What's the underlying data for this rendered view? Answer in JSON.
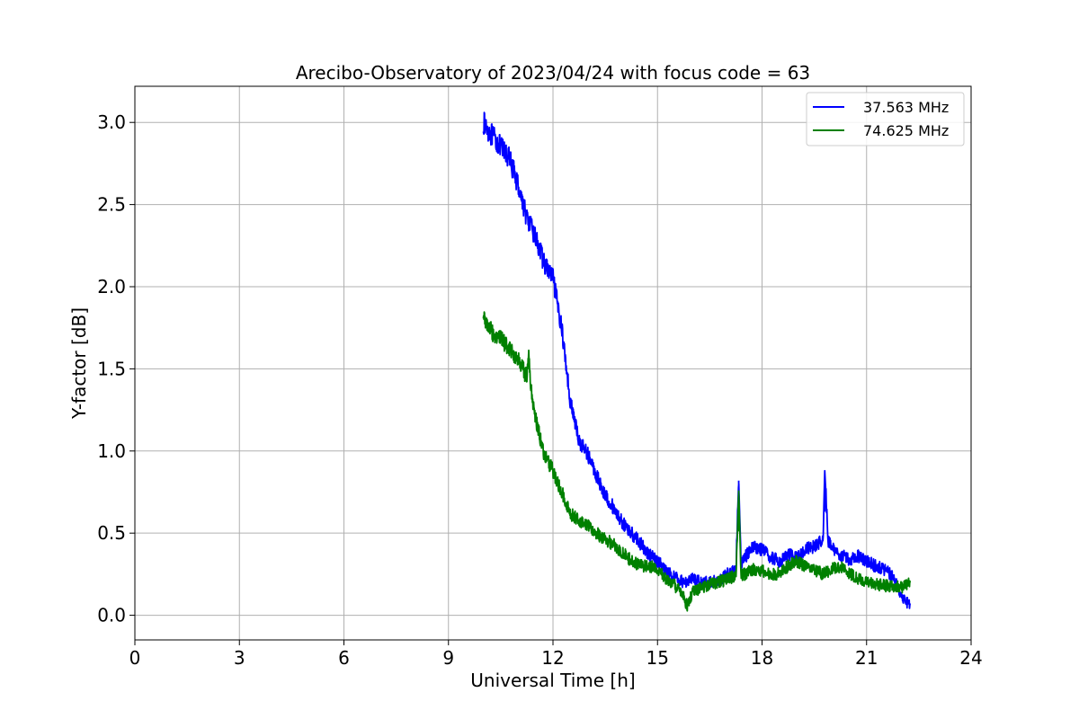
{
  "chart_data": {
    "type": "line",
    "title": "Arecibo-Observatory of 2023/04/24 with focus code = 63",
    "xlabel": "Universal Time [h]",
    "ylabel": "Y-factor [dB]",
    "xlim": [
      0,
      24
    ],
    "ylim": [
      -0.15,
      3.22
    ],
    "xticks": [
      0,
      3,
      6,
      9,
      12,
      15,
      18,
      21,
      24
    ],
    "yticks": [
      0.0,
      0.5,
      1.0,
      1.5,
      2.0,
      2.5,
      3.0
    ],
    "grid": true,
    "legend_position": "top-right",
    "series": [
      {
        "name": "37.563 MHz",
        "color": "#0000ff",
        "x": [
          10.0,
          10.25,
          10.5,
          10.75,
          11.0,
          11.25,
          11.5,
          11.75,
          12.0,
          12.25,
          12.5,
          12.75,
          13.0,
          13.25,
          13.5,
          13.75,
          14.0,
          14.25,
          14.5,
          14.75,
          15.0,
          15.25,
          15.5,
          15.75,
          16.0,
          16.25,
          16.5,
          16.75,
          17.0,
          17.25,
          17.33,
          17.4,
          17.5,
          17.75,
          18.0,
          18.25,
          18.5,
          18.75,
          19.0,
          19.25,
          19.5,
          19.75,
          19.8,
          19.9,
          20.0,
          20.25,
          20.5,
          20.75,
          21.0,
          21.25,
          21.5,
          21.75,
          22.0,
          22.25
        ],
        "y": [
          3.0,
          2.92,
          2.85,
          2.78,
          2.62,
          2.42,
          2.3,
          2.14,
          2.05,
          1.75,
          1.3,
          1.06,
          0.98,
          0.85,
          0.73,
          0.65,
          0.56,
          0.5,
          0.44,
          0.37,
          0.33,
          0.27,
          0.23,
          0.2,
          0.22,
          0.21,
          0.2,
          0.21,
          0.25,
          0.28,
          0.82,
          0.3,
          0.35,
          0.42,
          0.4,
          0.35,
          0.33,
          0.37,
          0.35,
          0.4,
          0.42,
          0.46,
          0.88,
          0.45,
          0.41,
          0.37,
          0.34,
          0.36,
          0.33,
          0.3,
          0.28,
          0.24,
          0.12,
          0.06
        ]
      },
      {
        "name": "74.625 MHz",
        "color": "#008000",
        "x": [
          10.0,
          10.25,
          10.5,
          10.75,
          11.0,
          11.25,
          11.3,
          11.35,
          11.5,
          11.75,
          12.0,
          12.25,
          12.5,
          12.75,
          13.0,
          13.25,
          13.5,
          13.75,
          14.0,
          14.25,
          14.5,
          14.75,
          15.0,
          15.25,
          15.5,
          15.75,
          15.85,
          16.0,
          16.25,
          16.5,
          16.75,
          17.0,
          17.25,
          17.33,
          17.4,
          17.5,
          17.75,
          18.0,
          18.25,
          18.5,
          18.75,
          19.0,
          19.25,
          19.5,
          19.75,
          20.0,
          20.25,
          20.5,
          20.75,
          21.0,
          21.25,
          21.5,
          21.75,
          22.0,
          22.25
        ],
        "y": [
          1.82,
          1.72,
          1.68,
          1.63,
          1.55,
          1.45,
          1.6,
          1.4,
          1.2,
          0.97,
          0.88,
          0.75,
          0.62,
          0.58,
          0.55,
          0.5,
          0.46,
          0.43,
          0.38,
          0.33,
          0.3,
          0.3,
          0.28,
          0.22,
          0.18,
          0.12,
          0.05,
          0.14,
          0.17,
          0.19,
          0.2,
          0.22,
          0.24,
          0.76,
          0.24,
          0.25,
          0.28,
          0.27,
          0.24,
          0.26,
          0.3,
          0.33,
          0.3,
          0.28,
          0.25,
          0.28,
          0.3,
          0.26,
          0.22,
          0.2,
          0.19,
          0.18,
          0.18,
          0.17,
          0.2
        ]
      }
    ]
  }
}
